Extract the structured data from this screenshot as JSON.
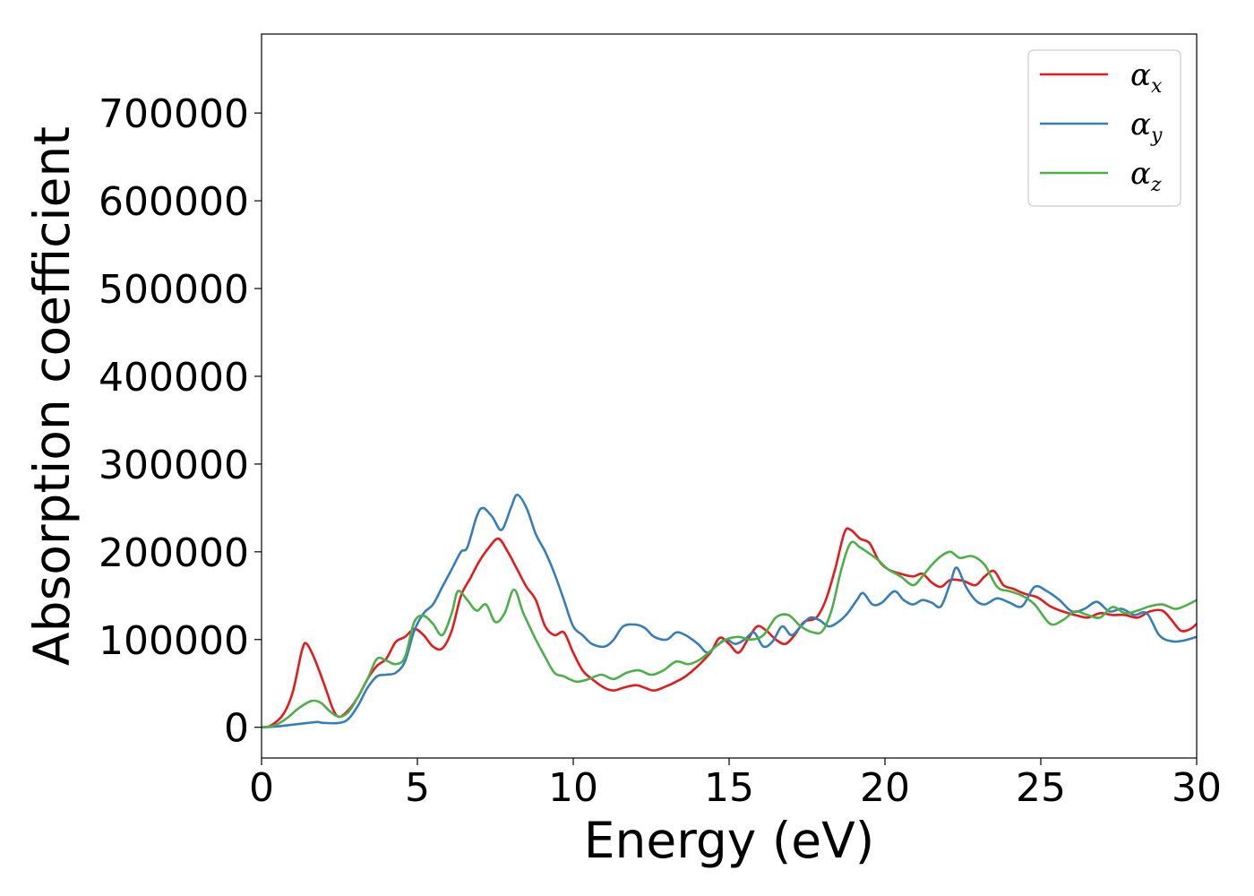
{
  "chart_data": {
    "type": "line",
    "title": "",
    "xlabel": "Energy (eV)",
    "ylabel": "Absorption coefficient",
    "xlim": [
      0,
      30
    ],
    "ylim": [
      -35000,
      790000
    ],
    "xticks": [
      0,
      5,
      10,
      15,
      20,
      25,
      30
    ],
    "xtick_labels": [
      "0",
      "5",
      "10",
      "15",
      "20",
      "25",
      "30"
    ],
    "yticks": [
      0,
      100000,
      200000,
      300000,
      400000,
      500000,
      600000,
      700000
    ],
    "ytick_labels": [
      "0",
      "100000",
      "200000",
      "300000",
      "400000",
      "500000",
      "600000",
      "700000"
    ],
    "grid": false,
    "legend_position": "top-right",
    "series": [
      {
        "name": "α_x",
        "name_main": "α",
        "name_sub": "x",
        "color": "#e41a1c",
        "points": [
          [
            0,
            0
          ],
          [
            0.3,
            2000
          ],
          [
            0.7,
            15000
          ],
          [
            1.0,
            40000
          ],
          [
            1.3,
            88000
          ],
          [
            1.45,
            95000
          ],
          [
            1.7,
            78000
          ],
          [
            2.0,
            50000
          ],
          [
            2.3,
            20000
          ],
          [
            2.5,
            12000
          ],
          [
            2.8,
            20000
          ],
          [
            3.1,
            35000
          ],
          [
            3.4,
            55000
          ],
          [
            3.7,
            70000
          ],
          [
            4.0,
            78000
          ],
          [
            4.3,
            97000
          ],
          [
            4.6,
            103000
          ],
          [
            4.9,
            112000
          ],
          [
            5.2,
            105000
          ],
          [
            5.5,
            92000
          ],
          [
            5.8,
            90000
          ],
          [
            6.1,
            110000
          ],
          [
            6.4,
            150000
          ],
          [
            6.7,
            170000
          ],
          [
            7.0,
            190000
          ],
          [
            7.3,
            205000
          ],
          [
            7.6,
            215000
          ],
          [
            7.9,
            200000
          ],
          [
            8.2,
            180000
          ],
          [
            8.5,
            160000
          ],
          [
            8.8,
            145000
          ],
          [
            9.1,
            115000
          ],
          [
            9.4,
            105000
          ],
          [
            9.7,
            108000
          ],
          [
            10.0,
            85000
          ],
          [
            10.3,
            65000
          ],
          [
            10.6,
            55000
          ],
          [
            11.0,
            45000
          ],
          [
            11.3,
            42000
          ],
          [
            11.6,
            45000
          ],
          [
            12.0,
            48000
          ],
          [
            12.3,
            45000
          ],
          [
            12.6,
            42000
          ],
          [
            13.0,
            47000
          ],
          [
            13.3,
            52000
          ],
          [
            13.6,
            58000
          ],
          [
            14.0,
            70000
          ],
          [
            14.4,
            85000
          ],
          [
            14.7,
            102000
          ],
          [
            15.0,
            95000
          ],
          [
            15.3,
            85000
          ],
          [
            15.6,
            100000
          ],
          [
            15.9,
            115000
          ],
          [
            16.2,
            110000
          ],
          [
            16.5,
            100000
          ],
          [
            16.8,
            95000
          ],
          [
            17.1,
            105000
          ],
          [
            17.4,
            120000
          ],
          [
            17.8,
            125000
          ],
          [
            18.1,
            145000
          ],
          [
            18.4,
            180000
          ],
          [
            18.7,
            222000
          ],
          [
            18.9,
            225000
          ],
          [
            19.2,
            215000
          ],
          [
            19.5,
            210000
          ],
          [
            19.8,
            190000
          ],
          [
            20.1,
            180000
          ],
          [
            20.5,
            175000
          ],
          [
            20.9,
            172000
          ],
          [
            21.2,
            175000
          ],
          [
            21.5,
            165000
          ],
          [
            21.8,
            160000
          ],
          [
            22.1,
            168000
          ],
          [
            22.5,
            167000
          ],
          [
            22.9,
            162000
          ],
          [
            23.2,
            172000
          ],
          [
            23.5,
            178000
          ],
          [
            23.8,
            162000
          ],
          [
            24.1,
            158000
          ],
          [
            24.5,
            152000
          ],
          [
            24.9,
            148000
          ],
          [
            25.3,
            138000
          ],
          [
            25.7,
            132000
          ],
          [
            26.1,
            128000
          ],
          [
            26.5,
            125000
          ],
          [
            26.9,
            130000
          ],
          [
            27.3,
            128000
          ],
          [
            27.7,
            128000
          ],
          [
            28.1,
            125000
          ],
          [
            28.5,
            132000
          ],
          [
            28.9,
            133000
          ],
          [
            29.2,
            122000
          ],
          [
            29.5,
            110000
          ],
          [
            29.8,
            112000
          ],
          [
            30,
            118000
          ]
        ]
      },
      {
        "name": "α_y",
        "name_main": "α",
        "name_sub": "y",
        "color": "#377eb8",
        "points": [
          [
            0,
            0
          ],
          [
            0.5,
            1000
          ],
          [
            1.0,
            3000
          ],
          [
            1.5,
            5000
          ],
          [
            1.8,
            6000
          ],
          [
            2.0,
            5000
          ],
          [
            2.5,
            5000
          ],
          [
            2.8,
            10000
          ],
          [
            3.1,
            25000
          ],
          [
            3.4,
            45000
          ],
          [
            3.7,
            58000
          ],
          [
            4.0,
            60000
          ],
          [
            4.3,
            62000
          ],
          [
            4.6,
            75000
          ],
          [
            4.9,
            110000
          ],
          [
            5.2,
            130000
          ],
          [
            5.5,
            140000
          ],
          [
            5.8,
            160000
          ],
          [
            6.1,
            180000
          ],
          [
            6.4,
            200000
          ],
          [
            6.6,
            205000
          ],
          [
            6.9,
            240000
          ],
          [
            7.1,
            250000
          ],
          [
            7.4,
            240000
          ],
          [
            7.7,
            225000
          ],
          [
            8.0,
            250000
          ],
          [
            8.2,
            265000
          ],
          [
            8.5,
            250000
          ],
          [
            8.8,
            220000
          ],
          [
            9.1,
            200000
          ],
          [
            9.4,
            175000
          ],
          [
            9.7,
            145000
          ],
          [
            10.0,
            115000
          ],
          [
            10.3,
            105000
          ],
          [
            10.6,
            95000
          ],
          [
            11.0,
            92000
          ],
          [
            11.3,
            100000
          ],
          [
            11.6,
            115000
          ],
          [
            12.0,
            117000
          ],
          [
            12.3,
            113000
          ],
          [
            12.6,
            103000
          ],
          [
            13.0,
            100000
          ],
          [
            13.3,
            108000
          ],
          [
            13.6,
            105000
          ],
          [
            14.0,
            95000
          ],
          [
            14.3,
            85000
          ],
          [
            14.6,
            93000
          ],
          [
            14.9,
            100000
          ],
          [
            15.2,
            95000
          ],
          [
            15.5,
            100000
          ],
          [
            15.8,
            108000
          ],
          [
            16.1,
            92000
          ],
          [
            16.4,
            98000
          ],
          [
            16.7,
            115000
          ],
          [
            17.0,
            105000
          ],
          [
            17.3,
            115000
          ],
          [
            17.6,
            125000
          ],
          [
            17.9,
            122000
          ],
          [
            18.2,
            115000
          ],
          [
            18.5,
            120000
          ],
          [
            18.8,
            130000
          ],
          [
            19.1,
            145000
          ],
          [
            19.3,
            153000
          ],
          [
            19.6,
            140000
          ],
          [
            19.9,
            142000
          ],
          [
            20.3,
            155000
          ],
          [
            20.6,
            145000
          ],
          [
            20.9,
            140000
          ],
          [
            21.2,
            145000
          ],
          [
            21.5,
            142000
          ],
          [
            21.8,
            138000
          ],
          [
            22.1,
            165000
          ],
          [
            22.3,
            182000
          ],
          [
            22.6,
            160000
          ],
          [
            22.9,
            145000
          ],
          [
            23.2,
            140000
          ],
          [
            23.6,
            147000
          ],
          [
            24.0,
            142000
          ],
          [
            24.4,
            138000
          ],
          [
            24.8,
            160000
          ],
          [
            25.2,
            155000
          ],
          [
            25.6,
            145000
          ],
          [
            26.0,
            132000
          ],
          [
            26.4,
            135000
          ],
          [
            26.8,
            143000
          ],
          [
            27.2,
            132000
          ],
          [
            27.6,
            135000
          ],
          [
            28.0,
            128000
          ],
          [
            28.4,
            130000
          ],
          [
            28.8,
            105000
          ],
          [
            29.2,
            98000
          ],
          [
            29.6,
            99000
          ],
          [
            30,
            103000
          ]
        ]
      },
      {
        "name": "α_z",
        "name_main": "α",
        "name_sub": "z",
        "color": "#4daf4a",
        "points": [
          [
            0,
            0
          ],
          [
            0.4,
            2000
          ],
          [
            0.8,
            10000
          ],
          [
            1.2,
            22000
          ],
          [
            1.6,
            30000
          ],
          [
            1.9,
            28000
          ],
          [
            2.2,
            18000
          ],
          [
            2.5,
            12000
          ],
          [
            2.8,
            18000
          ],
          [
            3.1,
            35000
          ],
          [
            3.4,
            55000
          ],
          [
            3.7,
            78000
          ],
          [
            4.0,
            76000
          ],
          [
            4.3,
            72000
          ],
          [
            4.6,
            80000
          ],
          [
            4.9,
            120000
          ],
          [
            5.2,
            127000
          ],
          [
            5.5,
            118000
          ],
          [
            5.8,
            105000
          ],
          [
            6.1,
            130000
          ],
          [
            6.3,
            155000
          ],
          [
            6.6,
            145000
          ],
          [
            6.9,
            133000
          ],
          [
            7.2,
            140000
          ],
          [
            7.5,
            120000
          ],
          [
            7.8,
            130000
          ],
          [
            8.1,
            157000
          ],
          [
            8.4,
            130000
          ],
          [
            8.8,
            100000
          ],
          [
            9.1,
            80000
          ],
          [
            9.4,
            62000
          ],
          [
            9.7,
            58000
          ],
          [
            10.1,
            52000
          ],
          [
            10.5,
            55000
          ],
          [
            10.9,
            60000
          ],
          [
            11.3,
            55000
          ],
          [
            11.7,
            62000
          ],
          [
            12.1,
            65000
          ],
          [
            12.5,
            60000
          ],
          [
            12.9,
            65000
          ],
          [
            13.3,
            75000
          ],
          [
            13.7,
            72000
          ],
          [
            14.1,
            78000
          ],
          [
            14.5,
            90000
          ],
          [
            14.9,
            100000
          ],
          [
            15.3,
            103000
          ],
          [
            15.7,
            100000
          ],
          [
            16.1,
            105000
          ],
          [
            16.5,
            125000
          ],
          [
            16.9,
            128000
          ],
          [
            17.3,
            115000
          ],
          [
            17.7,
            108000
          ],
          [
            18.0,
            110000
          ],
          [
            18.3,
            135000
          ],
          [
            18.6,
            180000
          ],
          [
            18.9,
            210000
          ],
          [
            19.2,
            205000
          ],
          [
            19.5,
            198000
          ],
          [
            19.8,
            190000
          ],
          [
            20.1,
            180000
          ],
          [
            20.5,
            172000
          ],
          [
            20.9,
            162000
          ],
          [
            21.2,
            172000
          ],
          [
            21.5,
            185000
          ],
          [
            21.8,
            195000
          ],
          [
            22.1,
            200000
          ],
          [
            22.4,
            193000
          ],
          [
            22.8,
            195000
          ],
          [
            23.2,
            185000
          ],
          [
            23.6,
            160000
          ],
          [
            24.0,
            155000
          ],
          [
            24.4,
            150000
          ],
          [
            24.8,
            140000
          ],
          [
            25.3,
            118000
          ],
          [
            25.7,
            122000
          ],
          [
            26.1,
            132000
          ],
          [
            26.5,
            128000
          ],
          [
            26.9,
            125000
          ],
          [
            27.3,
            137000
          ],
          [
            27.7,
            130000
          ],
          [
            28.1,
            133000
          ],
          [
            28.5,
            138000
          ],
          [
            28.9,
            140000
          ],
          [
            29.3,
            135000
          ],
          [
            29.6,
            138000
          ],
          [
            30,
            145000
          ]
        ]
      }
    ]
  }
}
